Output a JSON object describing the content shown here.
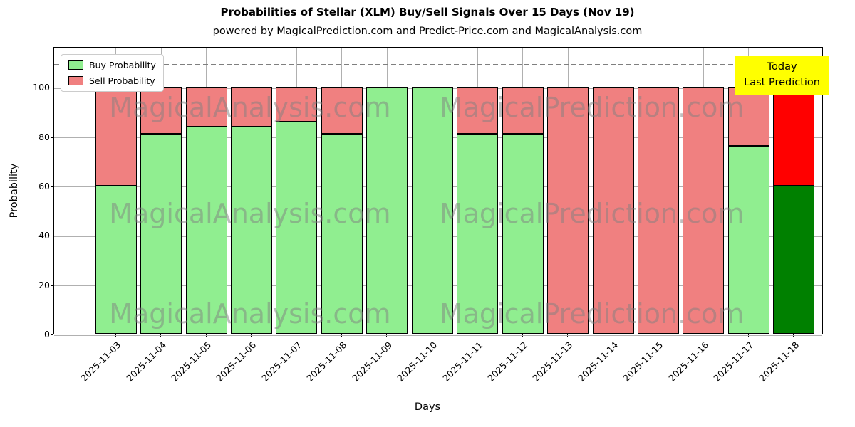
{
  "chart_data": {
    "type": "bar",
    "stacked": true,
    "title": "Probabilities of Stellar (XLM) Buy/Sell Signals Over 15 Days (Nov 19)",
    "subtitle": "powered by MagicalPrediction.com and Predict-Price.com and MagicalAnalysis.com",
    "xlabel": "Days",
    "ylabel": "Probability",
    "ylim": [
      0,
      116.5
    ],
    "yticks": [
      0,
      20,
      40,
      60,
      80,
      100
    ],
    "grid": true,
    "legend_position": "upper-left",
    "categories": [
      "2025-11-03",
      "2025-11-04",
      "2025-11-05",
      "2025-11-06",
      "2025-11-07",
      "2025-11-08",
      "2025-11-09",
      "2025-11-10",
      "2025-11-11",
      "2025-11-12",
      "2025-11-13",
      "2025-11-14",
      "2025-11-15",
      "2025-11-16",
      "2025-11-17",
      "2025-11-18"
    ],
    "series": [
      {
        "name": "Buy Probability",
        "color": "#90EE90",
        "values": [
          60,
          81,
          84,
          84,
          86,
          81,
          100,
          100,
          81,
          81,
          0,
          0,
          0,
          0,
          76,
          60
        ]
      },
      {
        "name": "Sell Probability",
        "color": "#F08080",
        "values": [
          40,
          19,
          16,
          16,
          14,
          19,
          0,
          0,
          19,
          19,
          100,
          100,
          100,
          100,
          24,
          40
        ]
      }
    ],
    "today_index": 15,
    "today_colors": {
      "buy": "#008000",
      "sell": "#FF0000"
    },
    "dashed_line_y": 110,
    "annotation": {
      "line1": "Today",
      "line2": "Last Prediction",
      "bg": "#FFFF00"
    }
  },
  "watermarks": {
    "texts": [
      "MagicalAnalysis.com",
      "MagicalPrediction.com"
    ]
  }
}
